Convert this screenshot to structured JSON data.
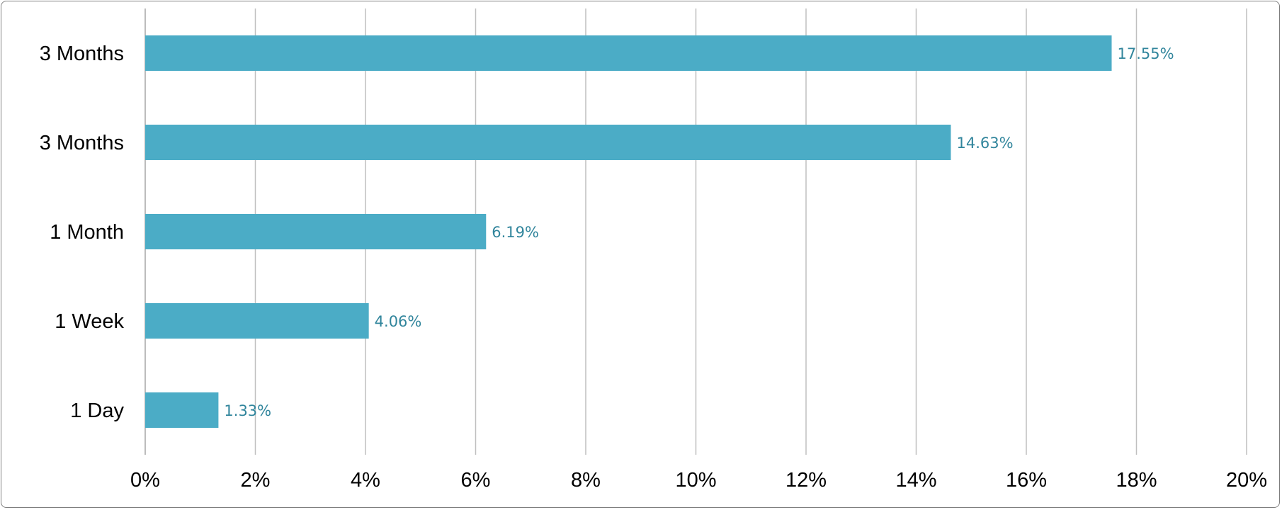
{
  "chart_data": {
    "type": "bar",
    "orientation": "horizontal",
    "title": "",
    "xlabel": "",
    "ylabel": "",
    "categories": [
      "3 Months",
      "3 Months",
      "1 Month",
      "1 Week",
      "1 Day"
    ],
    "values": [
      17.55,
      14.63,
      6.19,
      4.06,
      1.33
    ],
    "data_labels": [
      "17.55%",
      "14.63%",
      "6.19%",
      "4.06%",
      "1.33%"
    ],
    "xlim": [
      0,
      20
    ],
    "x_ticks": [
      0,
      2,
      4,
      6,
      8,
      10,
      12,
      14,
      16,
      18,
      20
    ],
    "x_tick_labels": [
      "0%",
      "2%",
      "4%",
      "6%",
      "8%",
      "10%",
      "12%",
      "14%",
      "16%",
      "18%",
      "20%"
    ],
    "grid": "vertical",
    "legend": "none",
    "bar_color": "#4bacc6",
    "data_label_color": "#31859c",
    "grid_color": "#bfbfbf"
  }
}
